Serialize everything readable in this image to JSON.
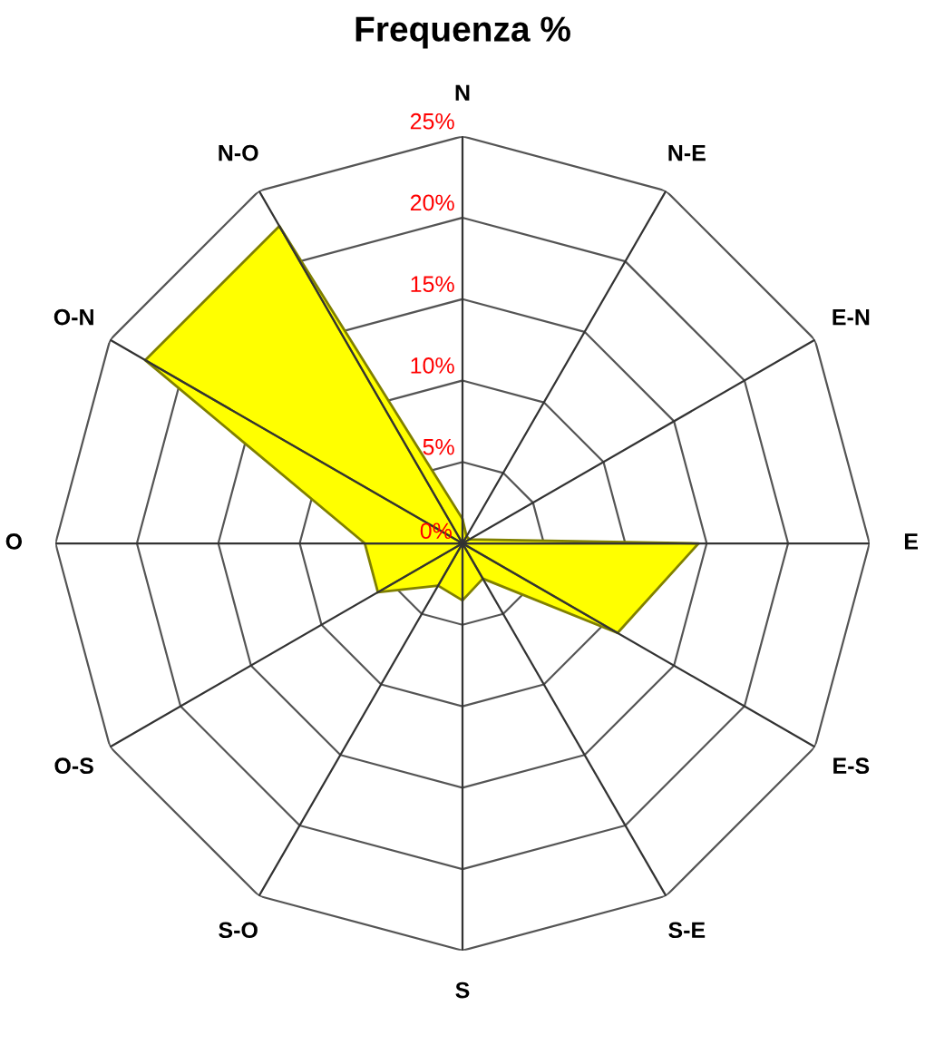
{
  "chart_data": {
    "type": "radar",
    "title": "Frequenza %",
    "categories": [
      "N",
      "N-E",
      "E-N",
      "E",
      "E-S",
      "S-E",
      "S",
      "S-O",
      "O-S",
      "O",
      "O-N",
      "N-O"
    ],
    "series": [
      {
        "color": "#ffff00",
        "values": [
          1.5,
          0.5,
          0.5,
          14.5,
          11,
          2.5,
          3.5,
          3,
          6,
          6,
          22.5,
          22.5
        ]
      }
    ],
    "ylim": [
      0,
      25
    ],
    "yticks": [
      {
        "value": 0,
        "label": "0%"
      },
      {
        "value": 5,
        "label": "5%"
      },
      {
        "value": 10,
        "label": "10%"
      },
      {
        "value": 15,
        "label": "15%"
      },
      {
        "value": 20,
        "label": "20%"
      },
      {
        "value": 25,
        "label": "25%"
      }
    ],
    "grid": true
  }
}
